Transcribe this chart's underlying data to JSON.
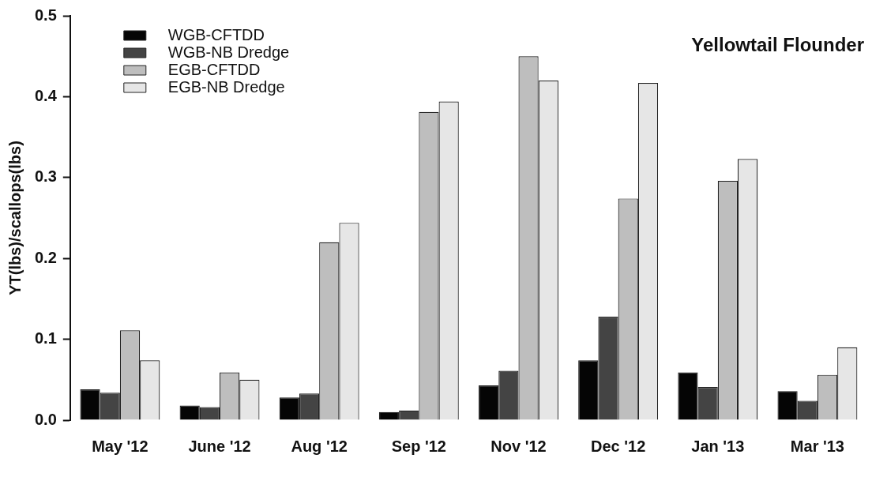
{
  "chart_data": {
    "type": "bar",
    "title": "Yellowtail Flounder",
    "ylabel": "YT(lbs)/scallops(lbs)",
    "categories": [
      "May '12",
      "June '12",
      "Aug '12",
      "Sep '12",
      "Nov '12",
      "Dec '12",
      "Jan '13",
      "Mar '13"
    ],
    "series": [
      {
        "name": "WGB-CFTDD",
        "color": "#050505",
        "values": [
          0.038,
          0.018,
          0.028,
          0.01,
          0.043,
          0.074,
          0.059,
          0.036
        ]
      },
      {
        "name": "WGB-NB Dredge",
        "color": "#444444",
        "values": [
          0.034,
          0.016,
          0.033,
          0.012,
          0.061,
          0.128,
          0.041,
          0.024
        ]
      },
      {
        "name": "EGB-CFTDD",
        "color": "#bebebe",
        "values": [
          0.111,
          0.059,
          0.22,
          0.381,
          0.45,
          0.274,
          0.296,
          0.056
        ]
      },
      {
        "name": "EGB-NB Dredge",
        "color": "#e6e6e6",
        "values": [
          0.074,
          0.05,
          0.244,
          0.394,
          0.42,
          0.417,
          0.323,
          0.09
        ]
      }
    ],
    "ylim": [
      0,
      0.5
    ],
    "yticks": [
      {
        "value": 0,
        "label": "0.0"
      },
      0.1,
      0.2,
      0.3,
      0.4,
      0.5
    ],
    "grid": false,
    "legend": "top left"
  }
}
